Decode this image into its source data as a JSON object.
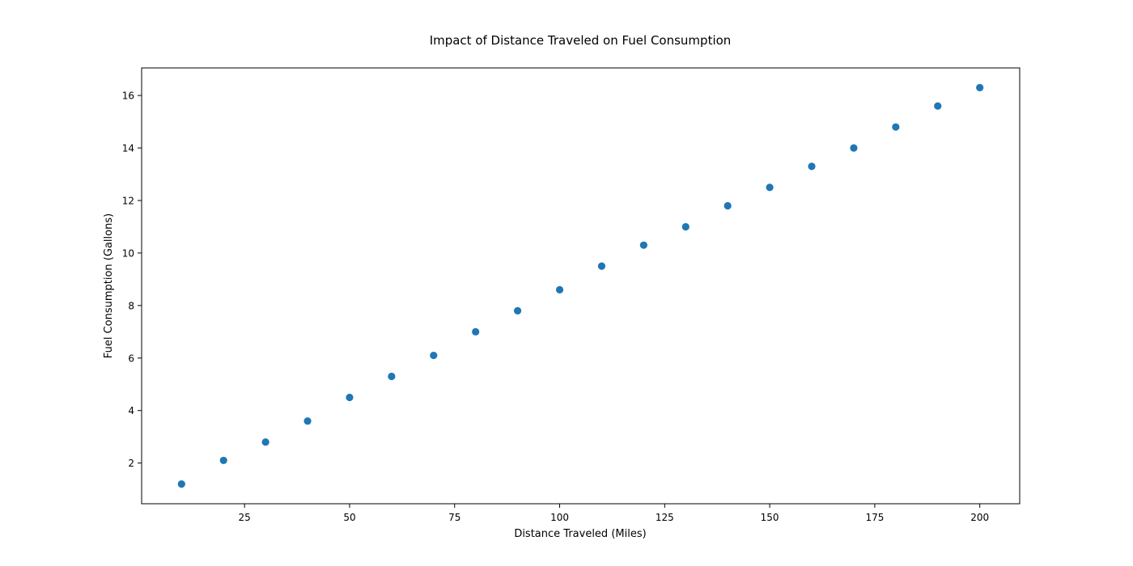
{
  "chart_data": {
    "type": "scatter",
    "title": "Impact of Distance Traveled on Fuel Consumption",
    "xlabel": "Distance Traveled (Miles)",
    "ylabel": "Fuel Consumption (Gallons)",
    "xlim": [
      0.5,
      209.5
    ],
    "ylim": [
      0.45,
      17.05
    ],
    "xticks": [
      25,
      50,
      75,
      100,
      125,
      150,
      175,
      200
    ],
    "yticks": [
      2,
      4,
      6,
      8,
      10,
      12,
      14,
      16
    ],
    "grid": false,
    "color": "#1f77b4",
    "points": [
      {
        "x": 10,
        "y": 1.2
      },
      {
        "x": 20,
        "y": 2.1
      },
      {
        "x": 30,
        "y": 2.8
      },
      {
        "x": 40,
        "y": 3.6
      },
      {
        "x": 50,
        "y": 4.5
      },
      {
        "x": 60,
        "y": 5.3
      },
      {
        "x": 70,
        "y": 6.1
      },
      {
        "x": 80,
        "y": 7.0
      },
      {
        "x": 90,
        "y": 7.8
      },
      {
        "x": 100,
        "y": 8.6
      },
      {
        "x": 110,
        "y": 9.5
      },
      {
        "x": 120,
        "y": 10.3
      },
      {
        "x": 130,
        "y": 11.0
      },
      {
        "x": 140,
        "y": 11.8
      },
      {
        "x": 150,
        "y": 12.5
      },
      {
        "x": 160,
        "y": 13.3
      },
      {
        "x": 170,
        "y": 14.0
      },
      {
        "x": 180,
        "y": 14.8
      },
      {
        "x": 190,
        "y": 15.6
      },
      {
        "x": 200,
        "y": 16.3
      }
    ]
  }
}
